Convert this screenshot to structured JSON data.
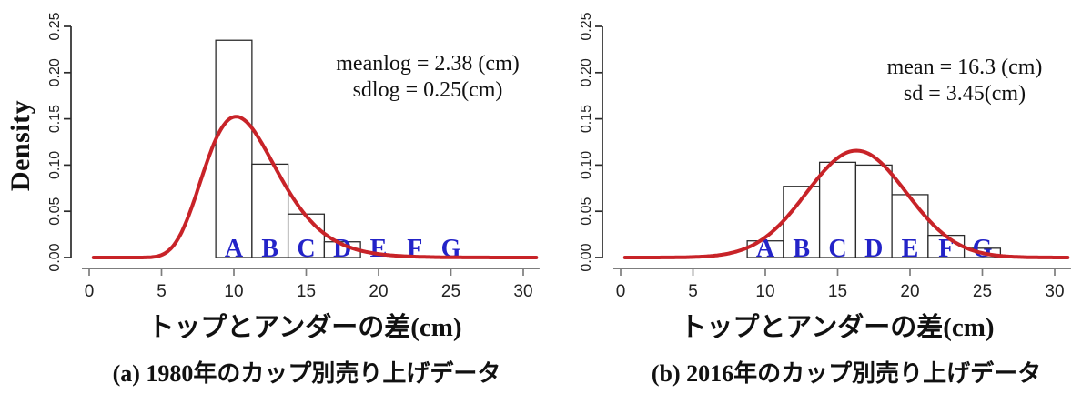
{
  "figure_background": "#ffffff",
  "colors": {
    "density_curve_red": "#c82328",
    "cup_letter_blue": "#2323c8",
    "x_axis_gray": "#7d7d7d",
    "y_axis_dark": "#2b2b2b",
    "bar_outline": "#2b2b2b",
    "bar_fill": "#ffffff",
    "text_ink": "#111111",
    "tick_label": "#222222"
  },
  "chart_data": [
    {
      "type": "bar",
      "subtype": "histogram_with_density_curve",
      "panel": "a",
      "ylabel": "Density",
      "xlabel": "トップとアンダーの差(cm)",
      "caption": "(a) 1980年のカップ別売り上げデータ",
      "annotation": {
        "line1": "meanlog = 2.38 (cm)",
        "line2": "sdlog = 0.25(cm)"
      },
      "x_ticks": [
        "0",
        "5",
        "10",
        "15",
        "20",
        "25",
        "30"
      ],
      "y_ticks": [
        "0.00",
        "0.05",
        "0.10",
        "0.15",
        "0.20",
        "0.25"
      ],
      "xlim": [
        0,
        31
      ],
      "ylim": [
        0,
        0.25
      ],
      "bin_width": 2.5,
      "bins": [
        {
          "from": 8.75,
          "to": 11.25,
          "density": 0.235
        },
        {
          "from": 11.25,
          "to": 13.75,
          "density": 0.101
        },
        {
          "from": 13.75,
          "to": 16.25,
          "density": 0.047
        },
        {
          "from": 16.25,
          "to": 18.75,
          "density": 0.017
        }
      ],
      "curve": {
        "distribution": "lognormal",
        "meanlog": 2.38,
        "sdlog": 0.25
      },
      "cup_labels": [
        {
          "label": "A",
          "x": 10
        },
        {
          "label": "B",
          "x": 12.5
        },
        {
          "label": "C",
          "x": 15
        },
        {
          "label": "D",
          "x": 17.5
        },
        {
          "label": "E",
          "x": 20
        },
        {
          "label": "F",
          "x": 22.5
        },
        {
          "label": "G",
          "x": 25
        }
      ]
    },
    {
      "type": "bar",
      "subtype": "histogram_with_density_curve",
      "panel": "b",
      "ylabel": "",
      "xlabel": "トップとアンダーの差(cm)",
      "caption": "(b) 2016年のカップ別売り上げデータ",
      "annotation": {
        "line1": "mean = 16.3 (cm)",
        "line2": "sd = 3.45(cm)"
      },
      "x_ticks": [
        "0",
        "5",
        "10",
        "15",
        "20",
        "25",
        "30"
      ],
      "y_ticks": [
        "0.00",
        "0.05",
        "0.10",
        "0.15",
        "0.20",
        "0.25"
      ],
      "xlim": [
        0,
        31
      ],
      "ylim": [
        0,
        0.25
      ],
      "bin_width": 2.5,
      "bins": [
        {
          "from": 8.75,
          "to": 11.25,
          "density": 0.018
        },
        {
          "from": 11.25,
          "to": 13.75,
          "density": 0.077
        },
        {
          "from": 13.75,
          "to": 16.25,
          "density": 0.103
        },
        {
          "from": 16.25,
          "to": 18.75,
          "density": 0.1
        },
        {
          "from": 18.75,
          "to": 21.25,
          "density": 0.068
        },
        {
          "from": 21.25,
          "to": 23.75,
          "density": 0.024
        },
        {
          "from": 23.75,
          "to": 26.25,
          "density": 0.01
        }
      ],
      "curve": {
        "distribution": "normal",
        "mean": 16.3,
        "sd": 3.45
      },
      "cup_labels": [
        {
          "label": "A",
          "x": 10
        },
        {
          "label": "B",
          "x": 12.5
        },
        {
          "label": "C",
          "x": 15
        },
        {
          "label": "D",
          "x": 17.5
        },
        {
          "label": "E",
          "x": 20
        },
        {
          "label": "F",
          "x": 22.5
        },
        {
          "label": "G",
          "x": 25
        }
      ]
    }
  ]
}
